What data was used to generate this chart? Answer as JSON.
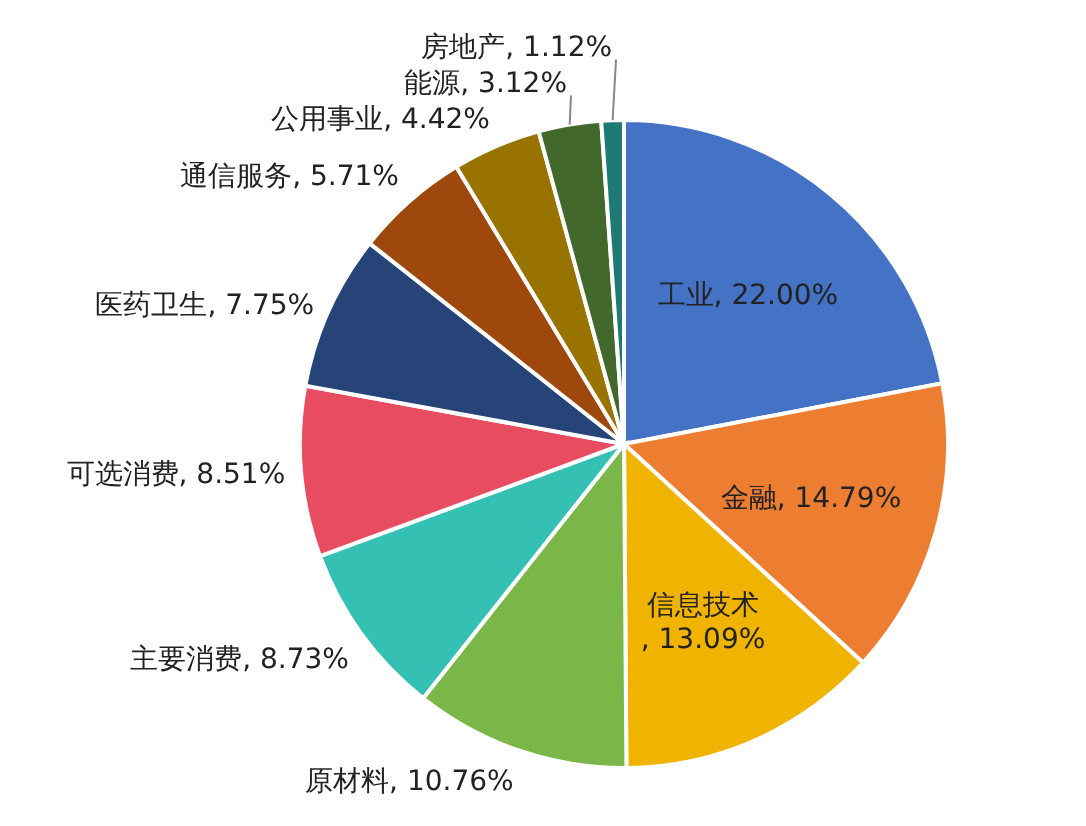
{
  "chart_data": {
    "type": "pie",
    "categories": [
      "工业",
      "金融",
      "信息技术",
      "原材料",
      "主要消费",
      "可选消费",
      "医药卫生",
      "通信服务",
      "公用事业",
      "能源",
      "房地产"
    ],
    "values": [
      22.0,
      14.79,
      13.09,
      10.76,
      8.73,
      8.51,
      7.75,
      5.71,
      4.42,
      3.12,
      1.12
    ],
    "value_labels": [
      ", 22.00%",
      ", 14.79%",
      ", 13.09%",
      ", 10.76%",
      ", 8.73%",
      ", 8.51%",
      ", 7.75%",
      ", 5.71%",
      ", 4.42%",
      ", 3.12%",
      ", 1.12%"
    ],
    "colors": [
      "#4472c4",
      "#ed7d31",
      "#f0b400",
      "#7ab648",
      "#34c0b2",
      "#e84c61",
      "#264478",
      "#9e480e",
      "#997300",
      "#43682b",
      "#1e7a72"
    ]
  }
}
